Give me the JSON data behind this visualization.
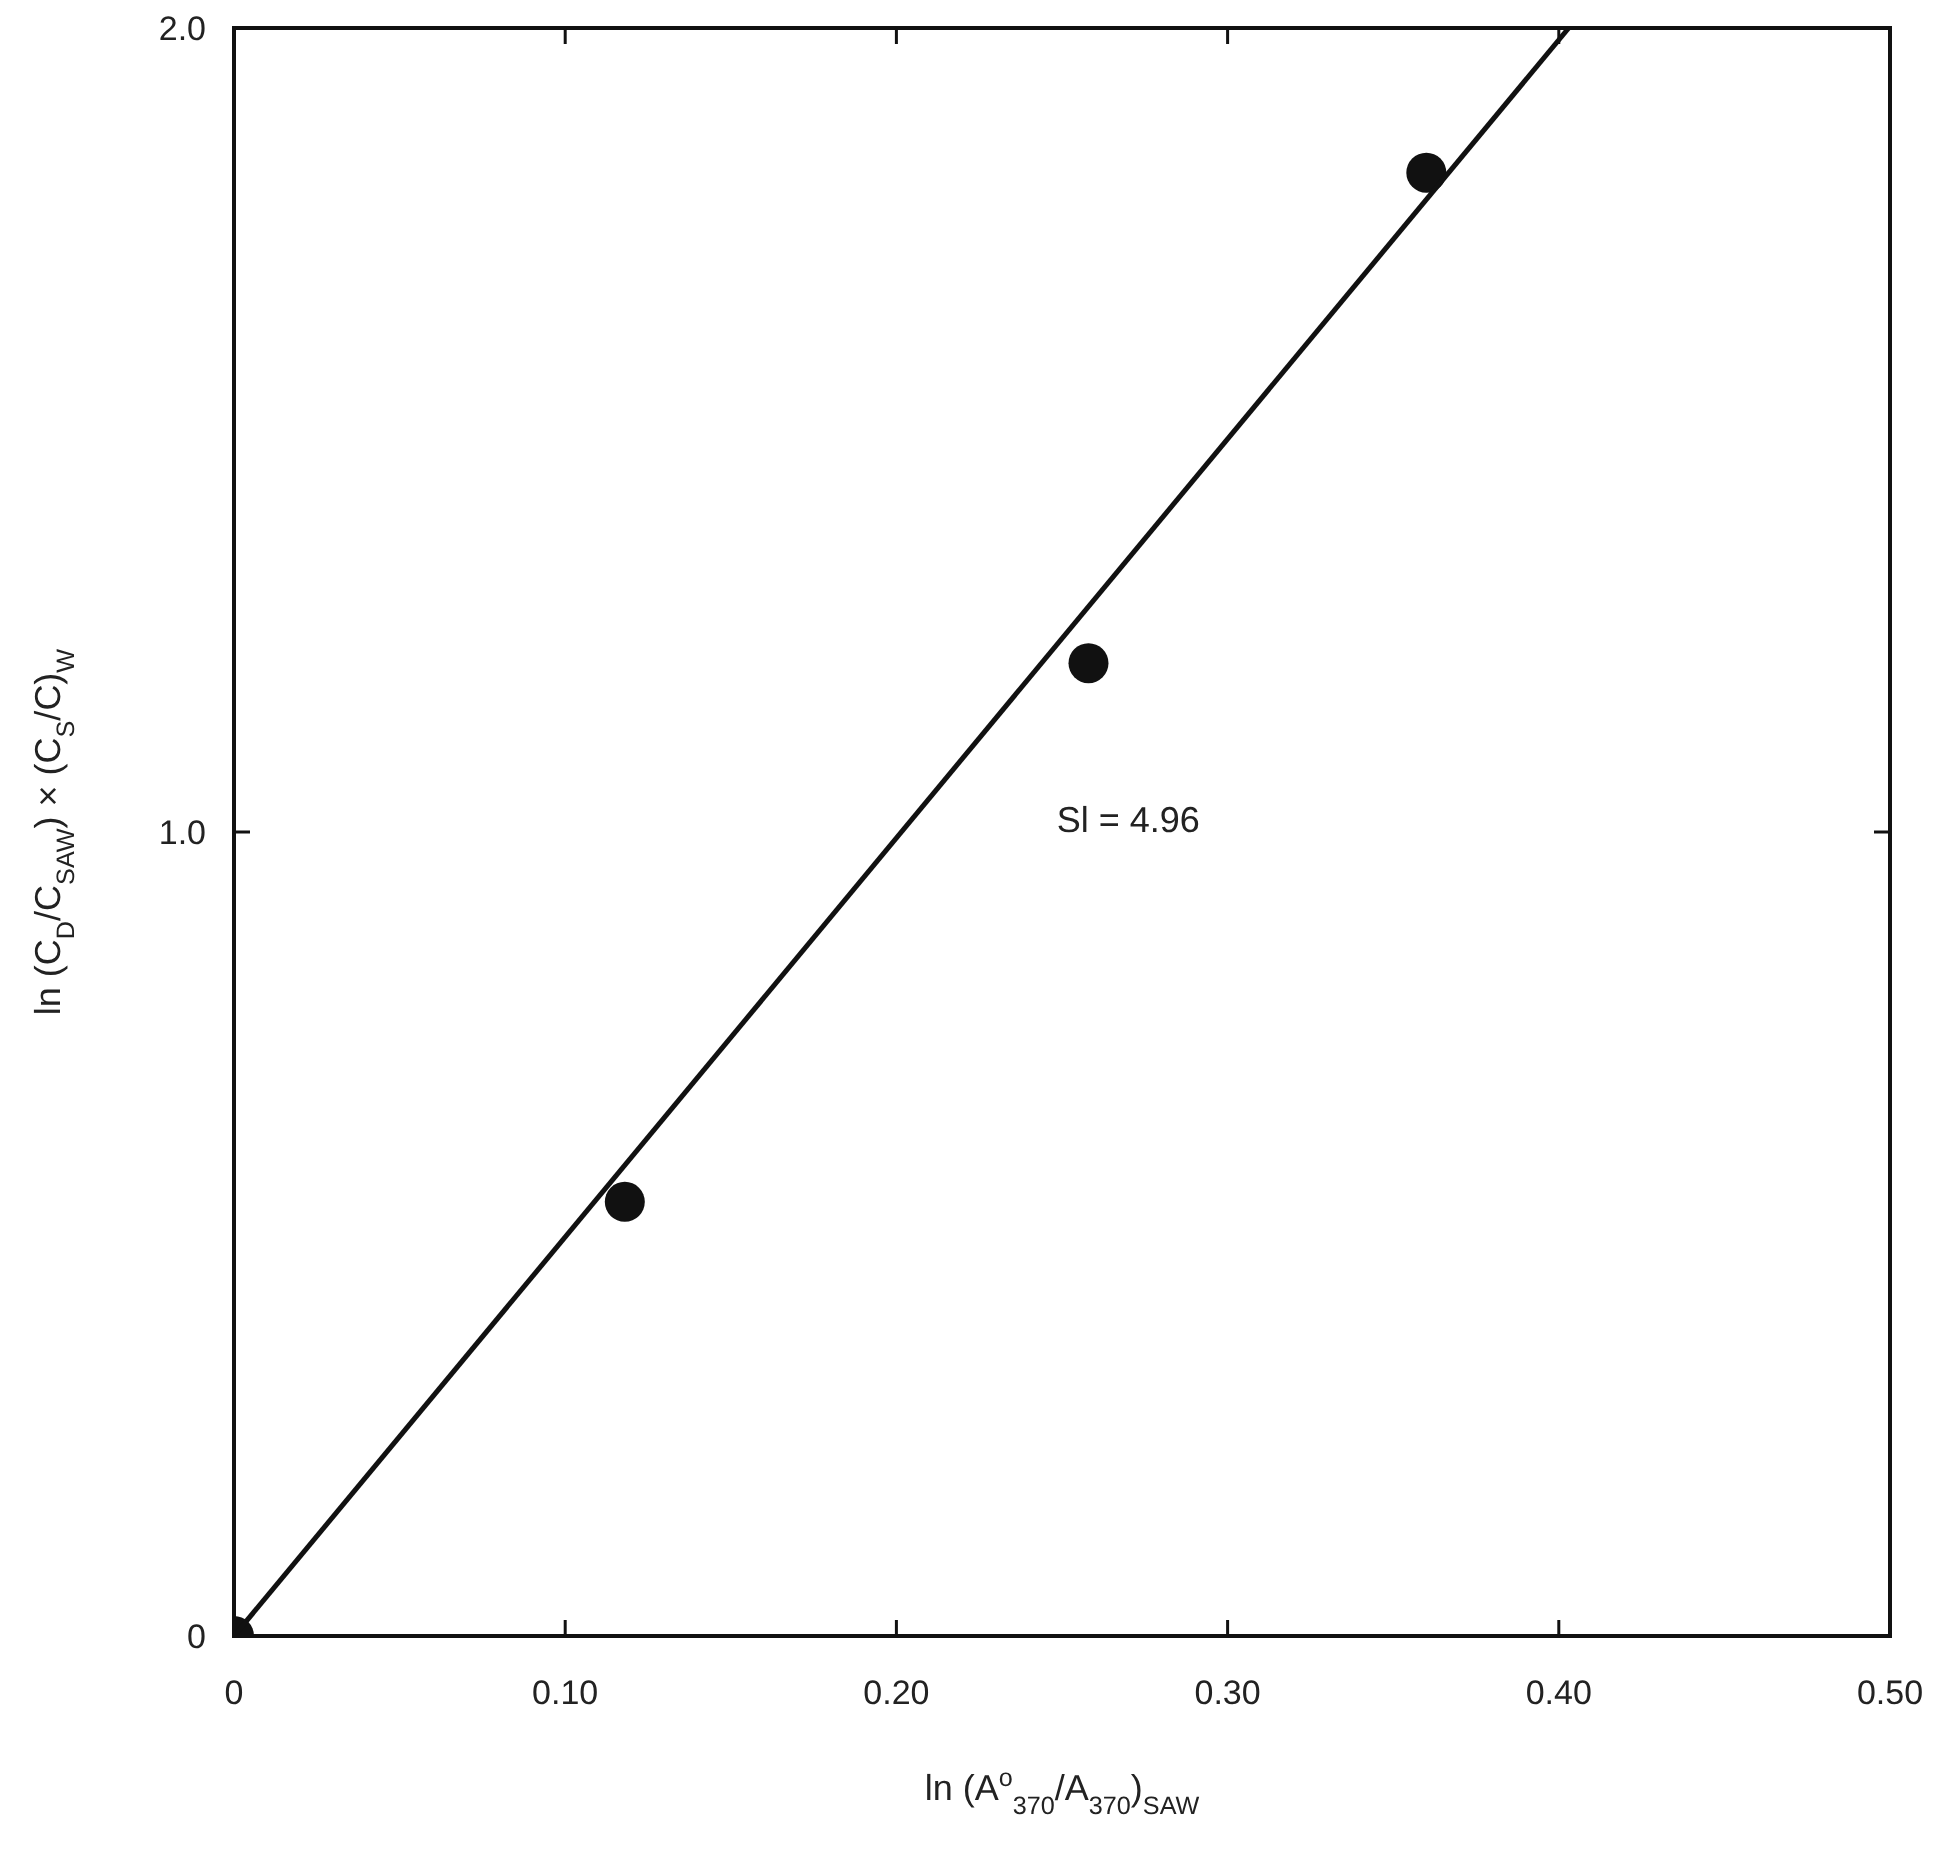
{
  "chart_data": {
    "type": "scatter",
    "xlabel": "ln (A$^{o}$$_{370}$/A$_{370}$)$_{SAW}$",
    "ylabel": "ln (C$_{D}$/C$_{SAW}$) × (C$_{S}$/C)$_{W}$",
    "x": [
      0,
      0.118,
      0.258,
      0.36
    ],
    "series": [
      {
        "color": "#111111",
        "marker": "circle",
        "values": [
          0,
          0.54,
          1.21,
          1.82
        ]
      },
      {
        "type": "line",
        "color": "#111111",
        "marker": "none",
        "line_style": "solid",
        "x": [
          0,
          0.403
        ],
        "values": [
          0,
          2.0
        ]
      }
    ],
    "xlim": [
      0,
      0.5
    ],
    "xticks": [
      0,
      {
        "value": 0.1,
        "label": "0.10"
      },
      {
        "value": 0.2,
        "label": "0.20"
      },
      {
        "value": 0.3,
        "label": "0.30"
      },
      {
        "value": 0.4,
        "label": "0.40"
      },
      {
        "value": 0.5,
        "label": "0.50"
      }
    ],
    "ylim": [
      0,
      2.0
    ],
    "yticks": [
      0,
      {
        "value": 1,
        "label": "1.0"
      },
      {
        "value": 2,
        "label": "2.0"
      }
    ],
    "grid": false,
    "annotations": [
      "Sl = 4.96"
    ]
  }
}
